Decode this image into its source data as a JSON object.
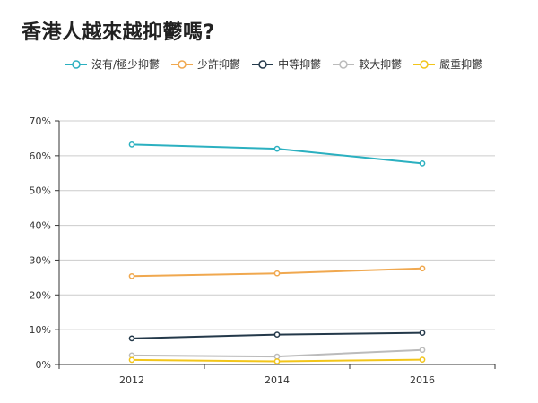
{
  "chart_data": {
    "type": "line",
    "title": "香港人越來越抑鬱嗎?",
    "xlabel": "",
    "ylabel": "",
    "x": [
      "2012",
      "2014",
      "2016"
    ],
    "ylim": [
      0,
      70
    ],
    "y_tick_values": [
      0,
      10,
      20,
      30,
      40,
      50,
      60,
      70
    ],
    "y_tick_labels": [
      "0%",
      "10%",
      "20%",
      "30%",
      "40%",
      "50%",
      "60%",
      "70%"
    ],
    "grid": true,
    "legend_position": "top",
    "series": [
      {
        "name": "沒有/極少抑鬱",
        "color": "#2bb0c0",
        "values": [
          63.2,
          62.0,
          57.8
        ]
      },
      {
        "name": "少許抑鬱",
        "color": "#f0a84f",
        "values": [
          25.4,
          26.2,
          27.6
        ]
      },
      {
        "name": "中等抑鬱",
        "color": "#24394a",
        "values": [
          7.5,
          8.6,
          9.1
        ]
      },
      {
        "name": "較大抑鬱",
        "color": "#bbbbbb",
        "values": [
          2.6,
          2.3,
          4.2
        ]
      },
      {
        "name": "嚴重抑鬱",
        "color": "#f2c51a",
        "values": [
          1.3,
          0.9,
          1.4
        ]
      }
    ]
  }
}
